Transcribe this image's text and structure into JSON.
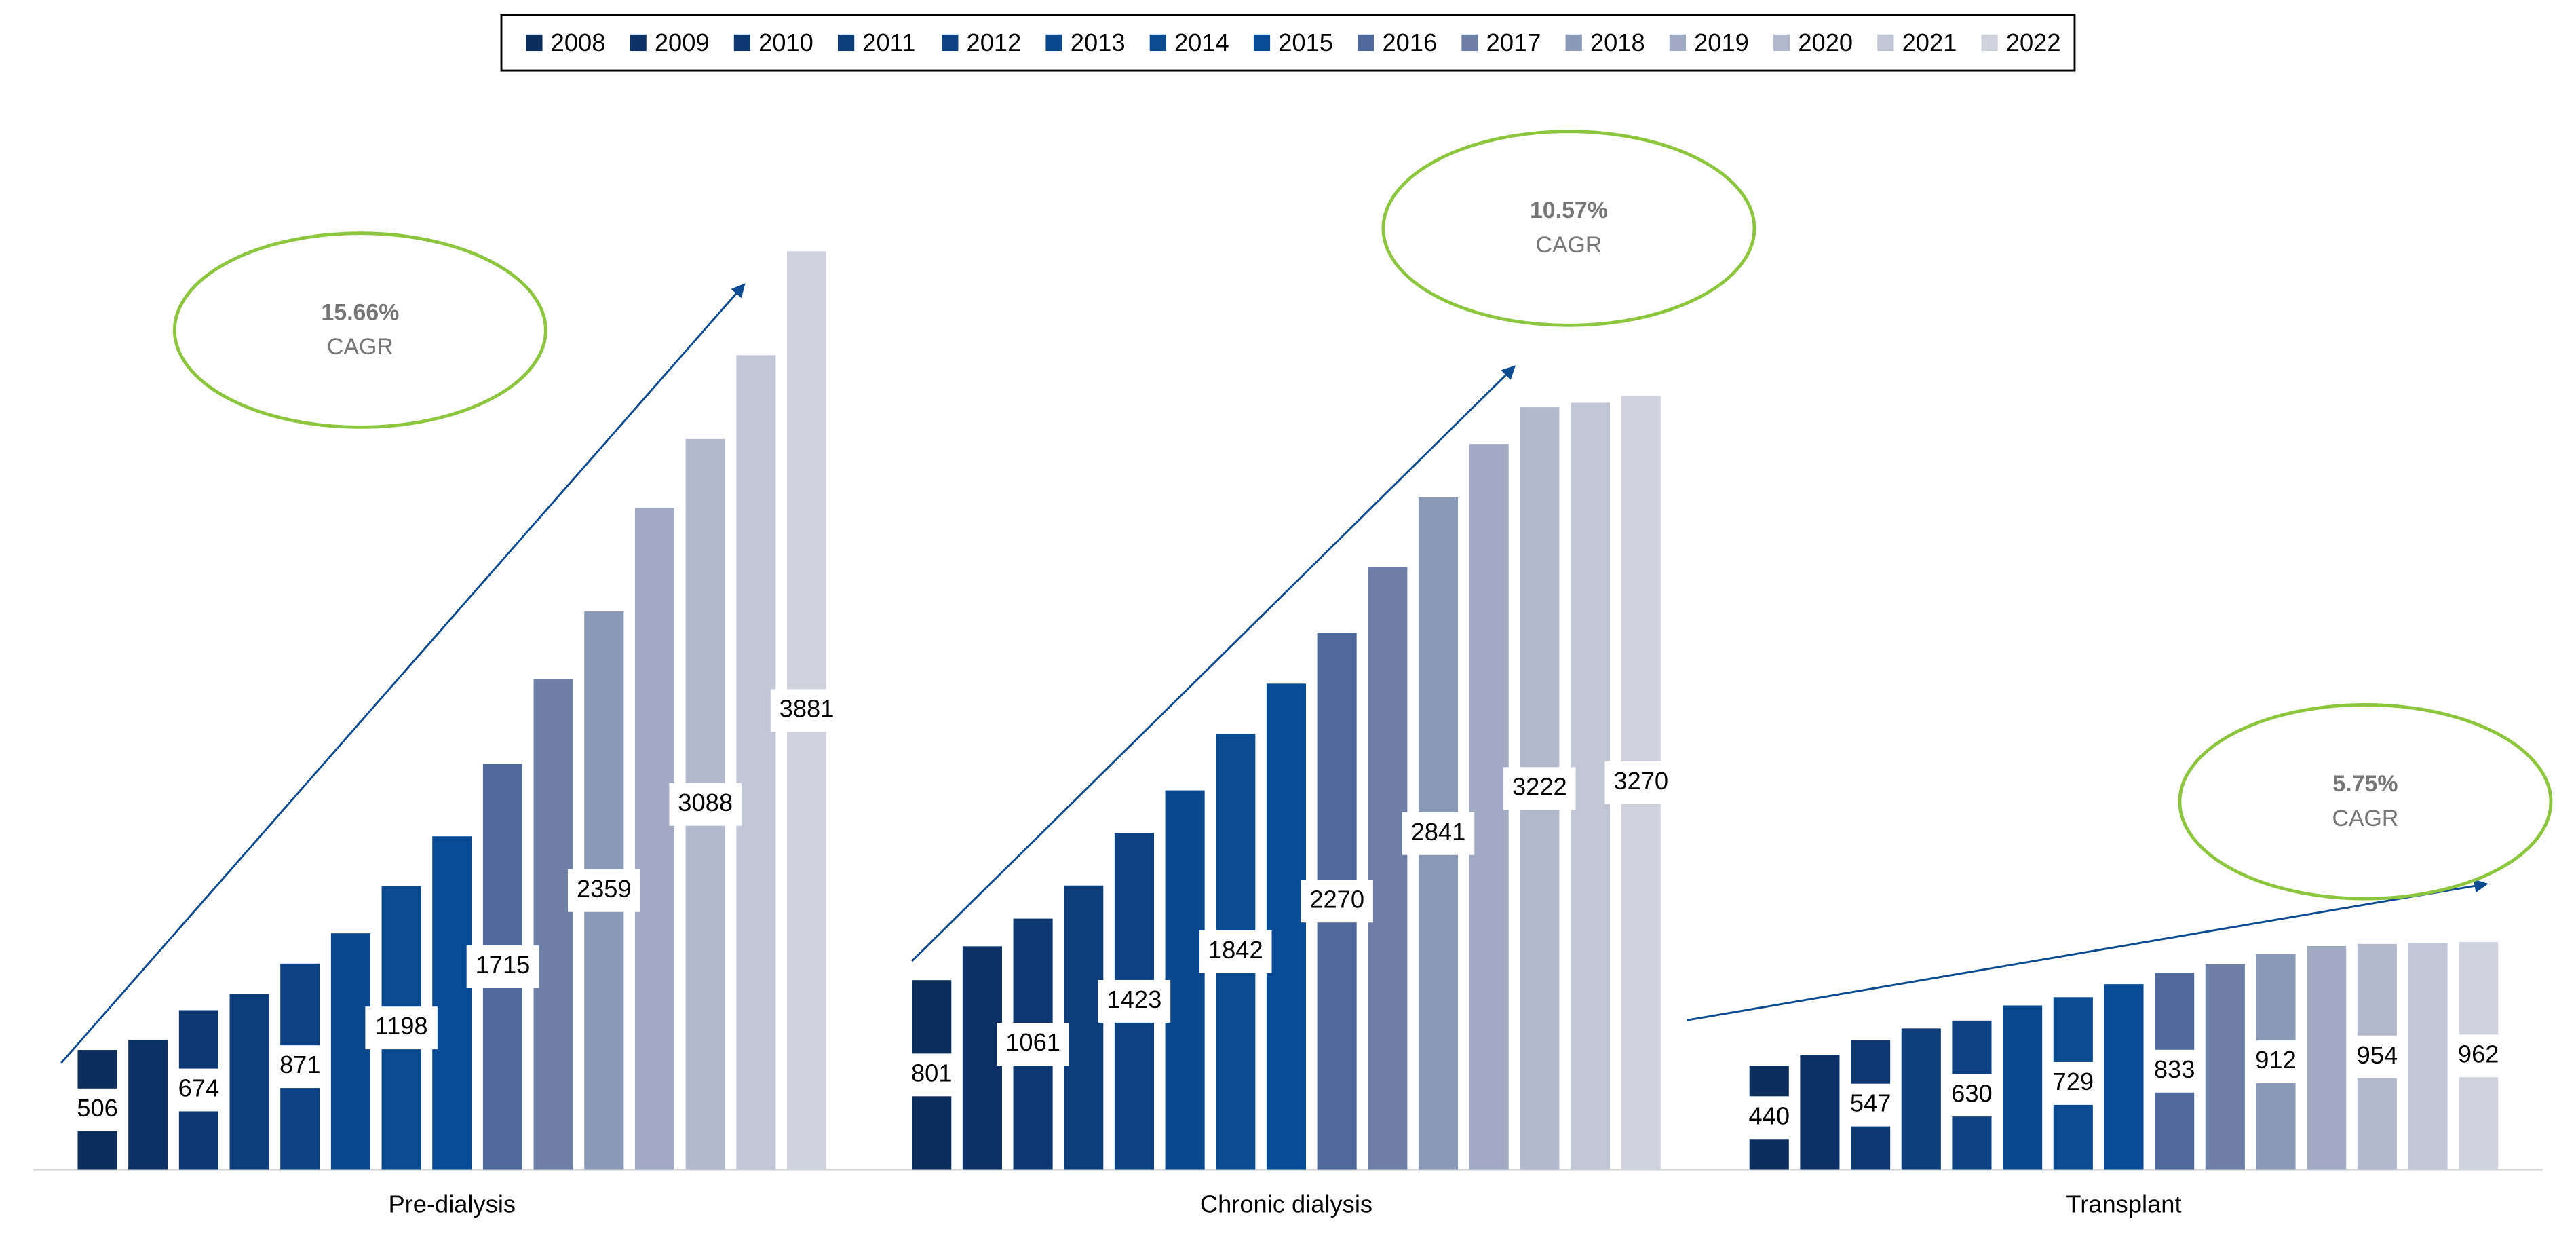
{
  "chart_data": {
    "type": "bar",
    "categories": [
      "Pre-dialysis",
      "Chronic dialysis",
      "Transplant"
    ],
    "series": [
      {
        "name": "2008",
        "color": "#0b2e5c",
        "data_labels": true,
        "values": [
          506,
          801,
          440
        ]
      },
      {
        "name": "2009",
        "color": "#0d3166",
        "data_labels": false,
        "values": [
          548,
          944,
          486
        ]
      },
      {
        "name": "2010",
        "color": "#0e3870",
        "data_labels": true,
        "values": [
          674,
          1061,
          547
        ]
      },
      {
        "name": "2011",
        "color": "#0d3d7a",
        "data_labels": false,
        "values": [
          743,
          1201,
          597
        ]
      },
      {
        "name": "2012",
        "color": "#0c4283",
        "data_labels": true,
        "values": [
          871,
          1423,
          630
        ]
      },
      {
        "name": "2013",
        "color": "#0b478c",
        "data_labels": false,
        "values": [
          999,
          1603,
          694
        ]
      },
      {
        "name": "2014",
        "color": "#0a4a90",
        "data_labels": true,
        "values": [
          1198,
          1842,
          729
        ]
      },
      {
        "name": "2015",
        "color": "#074a96",
        "data_labels": false,
        "values": [
          1409,
          2054,
          784
        ]
      },
      {
        "name": "2016",
        "color": "#4f6a9a",
        "data_labels": true,
        "values": [
          1715,
          2270,
          833
        ]
      },
      {
        "name": "2017",
        "color": "#6e80a8",
        "data_labels": false,
        "values": [
          2075,
          2547,
          868
        ]
      },
      {
        "name": "2018",
        "color": "#8a99b7",
        "data_labels": true,
        "values": [
          2359,
          2841,
          912
        ]
      },
      {
        "name": "2019",
        "color": "#a1aac3",
        "data_labels": false,
        "values": [
          2797,
          3067,
          945
        ]
      },
      {
        "name": "2020",
        "color": "#b3b9cd",
        "data_labels": true,
        "values": [
          3088,
          3222,
          954
        ]
      },
      {
        "name": "2021",
        "color": "#c2c7d6",
        "data_labels": false,
        "values": [
          3442,
          3241,
          958
        ]
      },
      {
        "name": "2022",
        "color": "#cfd2dd",
        "data_labels": true,
        "values": [
          3881,
          3270,
          962
        ]
      }
    ],
    "annotations": [
      {
        "value": "15.66%",
        "text": "CAGR"
      },
      {
        "value": "10.57%",
        "text": "CAGR"
      },
      {
        "value": "5.75%",
        "text": "CAGR"
      }
    ],
    "legend": "top",
    "grid": false
  }
}
